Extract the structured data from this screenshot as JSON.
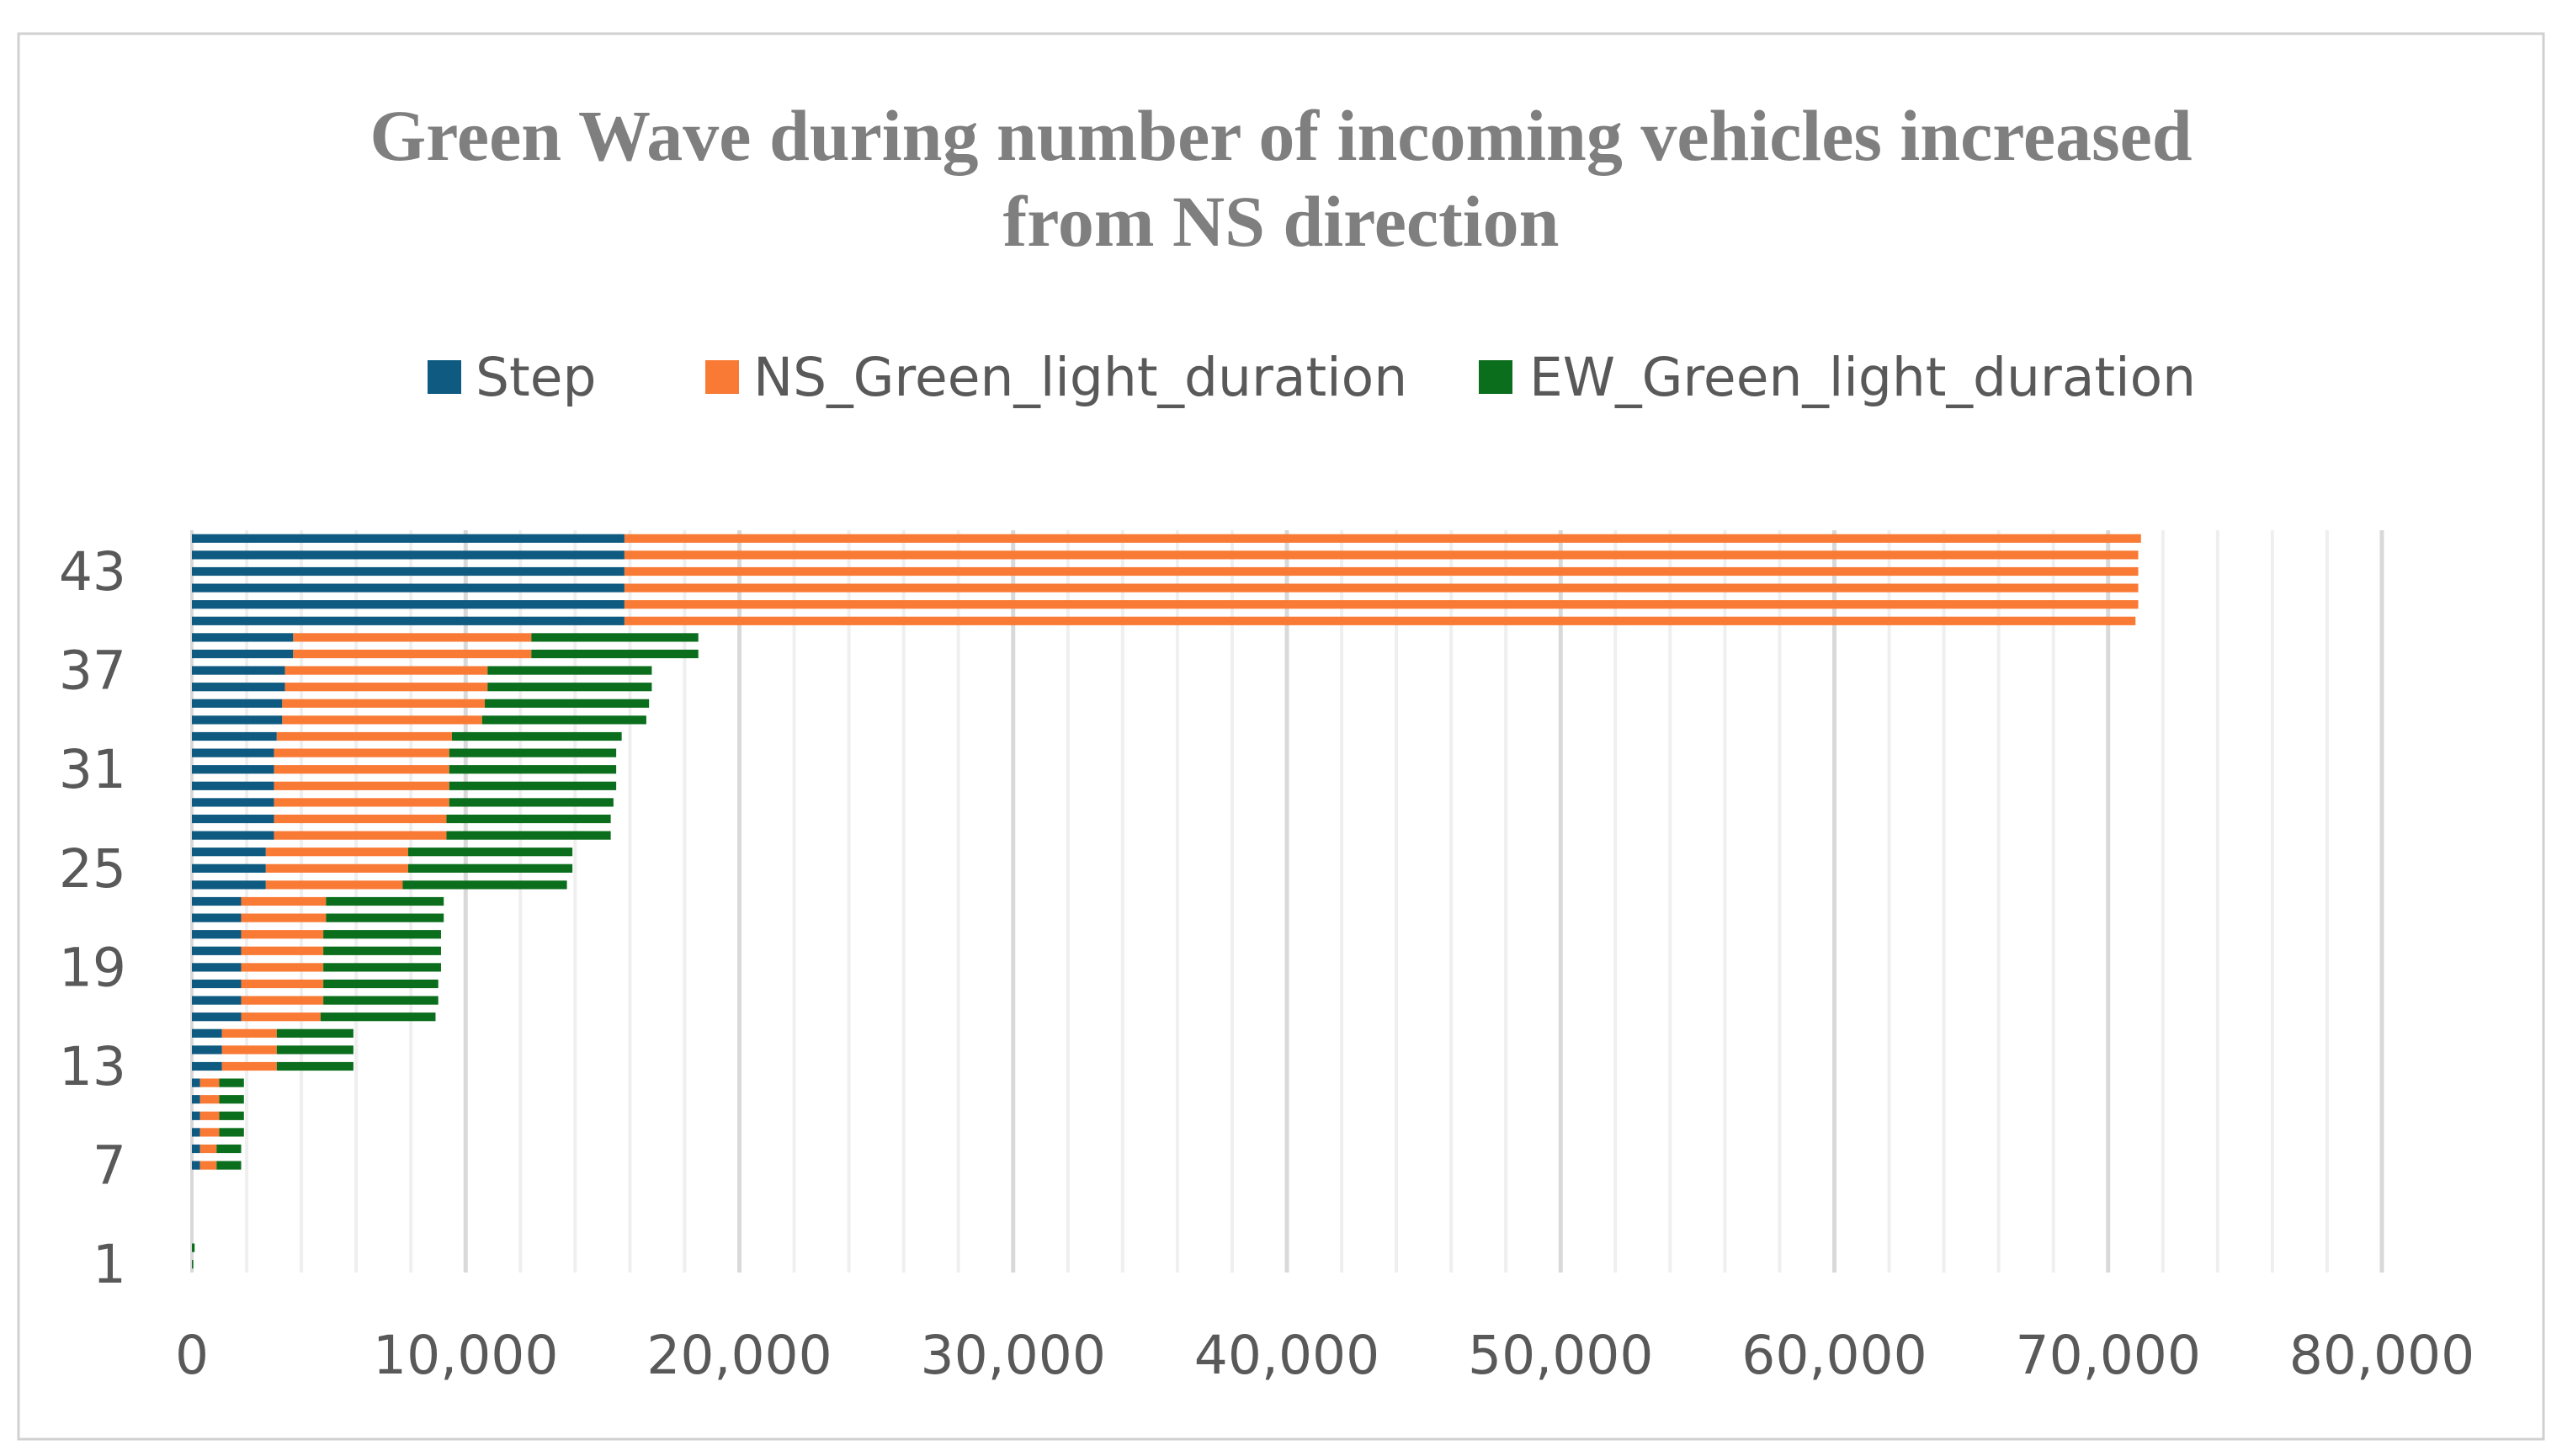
{
  "colors": {
    "step": "#0e5a80",
    "ns": "#f97a35",
    "ew": "#0b6e1d",
    "major_grid": "#d9d9d9",
    "minor_grid": "#efefef",
    "frame": "#d0d0d0",
    "text": "#595959",
    "title": "#7f7f7f"
  },
  "chart_data": {
    "type": "bar",
    "orientation": "horizontal",
    "stacked": true,
    "title": "Green Wave during number of incoming vehicles increased from NS direction",
    "title_lines": [
      "Green Wave during number of incoming vehicles increased",
      "from NS direction"
    ],
    "xlabel": "",
    "ylabel": "",
    "xlim": [
      0,
      80000
    ],
    "x_ticks": [
      0,
      10000,
      20000,
      30000,
      40000,
      50000,
      60000,
      70000,
      80000
    ],
    "x_tick_labels": [
      "0",
      "10,000",
      "20,000",
      "30,000",
      "40,000",
      "50,000",
      "60,000",
      "70,000",
      "80,000"
    ],
    "y_tick_labels": [
      "1",
      "7",
      "13",
      "19",
      "25",
      "31",
      "37",
      "43"
    ],
    "legend_position": "top-center",
    "categories": [
      1,
      2,
      3,
      4,
      5,
      6,
      7,
      8,
      9,
      10,
      11,
      12,
      13,
      14,
      15,
      16,
      17,
      18,
      19,
      20,
      21,
      22,
      23,
      24,
      25,
      26,
      27,
      28,
      29,
      30,
      31,
      32,
      33,
      34,
      35,
      36,
      37,
      38,
      39,
      40,
      41,
      42,
      43,
      44,
      45
    ],
    "series": [
      {
        "name": "Step",
        "color_key": "step",
        "values": [
          0,
          0,
          0,
          0,
          0,
          0,
          300,
          300,
          300,
          300,
          300,
          300,
          1100,
          1100,
          1100,
          1800,
          1800,
          1800,
          1800,
          1800,
          1800,
          1800,
          1800,
          2700,
          2700,
          2700,
          3000,
          3000,
          3000,
          3000,
          3000,
          3000,
          3100,
          3300,
          3300,
          3400,
          3400,
          3700,
          3700,
          15800,
          15800,
          15800,
          15800,
          15800,
          15800
        ]
      },
      {
        "name": "NS_Green_light_duration",
        "color_key": "ns",
        "values": [
          0,
          0,
          0,
          0,
          0,
          0,
          600,
          600,
          700,
          700,
          700,
          700,
          2000,
          2000,
          2000,
          2900,
          3000,
          3000,
          3000,
          3000,
          3000,
          3100,
          3100,
          5000,
          5200,
          5200,
          6300,
          6300,
          6400,
          6400,
          6400,
          6400,
          6400,
          7300,
          7400,
          7400,
          7400,
          8700,
          8700,
          55200,
          55300,
          55300,
          55300,
          55300,
          55400
        ]
      },
      {
        "name": "EW_Green_light_duration",
        "color_key": "ew",
        "values": [
          50,
          100,
          0,
          0,
          0,
          0,
          900,
          900,
          900,
          900,
          900,
          900,
          2800,
          2800,
          2800,
          4200,
          4200,
          4200,
          4300,
          4300,
          4300,
          4300,
          4300,
          6000,
          6000,
          6000,
          6000,
          6000,
          6000,
          6100,
          6100,
          6100,
          6200,
          6000,
          6000,
          6000,
          6000,
          6100,
          6100,
          0,
          0,
          0,
          0,
          0,
          0
        ]
      }
    ]
  }
}
